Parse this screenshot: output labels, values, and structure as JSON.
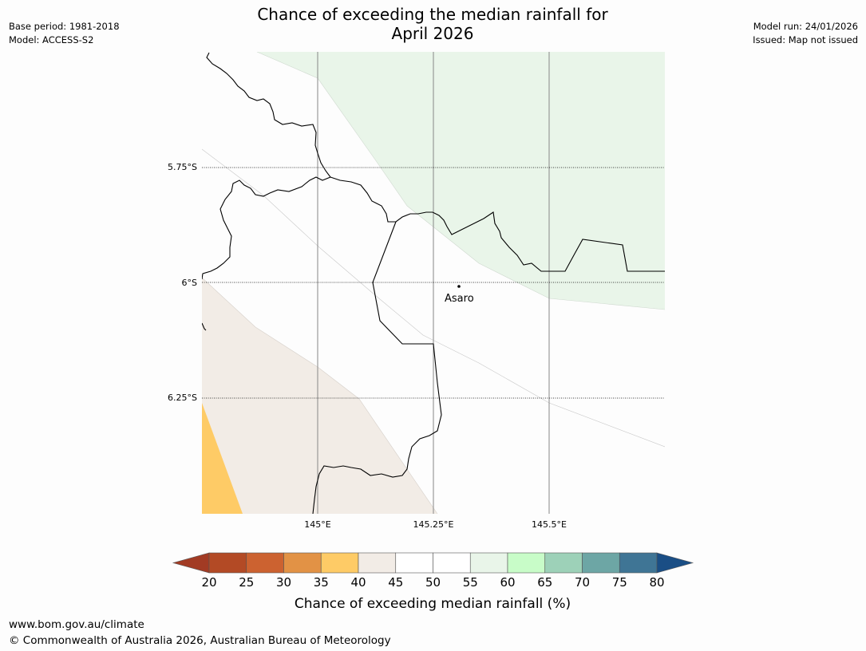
{
  "header": {
    "base_period": "Base period: 1981-2018",
    "model": "Model: ACCESS-S2",
    "model_run": "Model run: 24/01/2026",
    "issued": "Issued: Map not issued",
    "title_line1": "Chance of exceeding the median rainfall for",
    "title_line2": "April 2026"
  },
  "map": {
    "lat_labels": [
      "5.75°S",
      "6°S",
      "6.25°S"
    ],
    "lon_labels": [
      "145°E",
      "145.25°E",
      "145.5°E"
    ],
    "place": "Asaro"
  },
  "legend": {
    "title": "Chance of exceeding median rainfall (%)",
    "ticks": [
      "20",
      "25",
      "30",
      "35",
      "40",
      "45",
      "50",
      "55",
      "60",
      "65",
      "70",
      "75",
      "80"
    ],
    "colors": [
      "#a23b24",
      "#b34a25",
      "#cc6230",
      "#e29245",
      "#fecb66",
      "#f2ece6",
      "#ffffff",
      "#ffffff",
      "#e9f5e9",
      "#c8fcc8",
      "#9dd1b8",
      "#6da6a5",
      "#3f7595",
      "#1a4e85"
    ]
  },
  "footer": {
    "url": "www.bom.gov.au/climate",
    "copyright": "© Commonwealth of Australia 2026, Australian Bureau of Meteorology"
  }
}
